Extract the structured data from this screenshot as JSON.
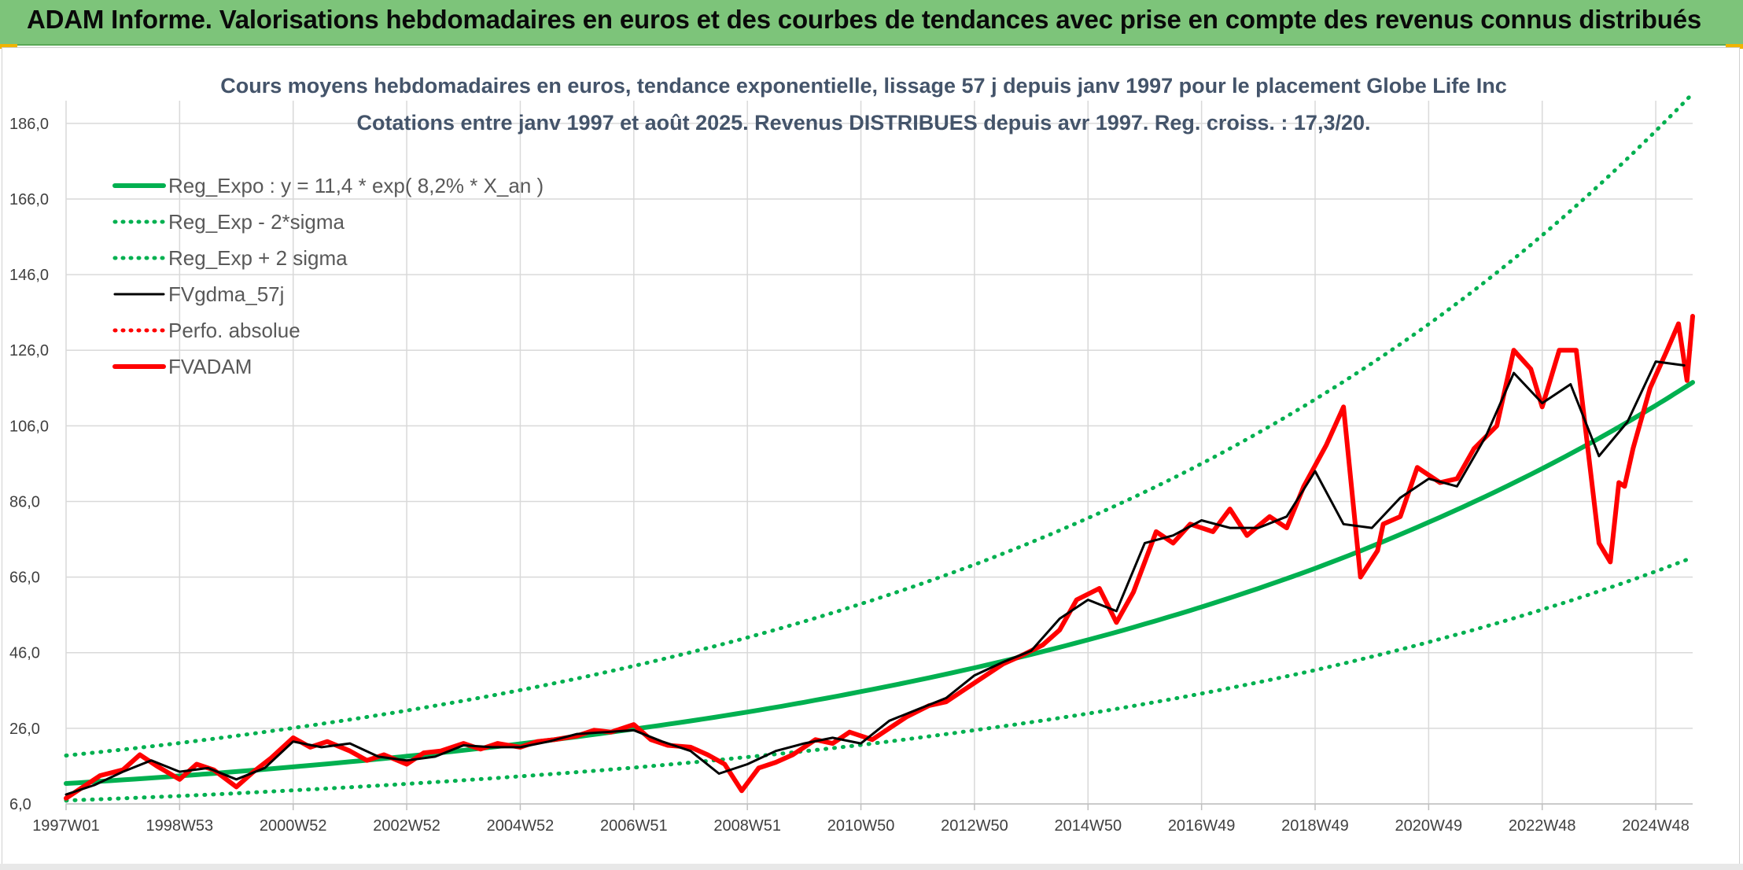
{
  "header": {
    "title": "ADAM Informe. Valorisations hebdomadaires en euros et des courbes de tendances avec prise en compte des revenus connus distribués"
  },
  "colors": {
    "header_bg": "#7dc47a",
    "reg_expo": "#00b050",
    "fvgdma": "#000000",
    "fvadam": "#ff0000",
    "perfo": "#ff0000",
    "grid": "#d9d9d9",
    "title_text": "#44546a"
  },
  "chart_data": {
    "type": "line",
    "title": "Cours moyens hebdomadaires en euros, tendance exponentielle, lissage 57 j depuis janv 1997 pour le placement Globe Life Inc",
    "subtitle": "Cotations entre janv 1997 et août 2025. Revenus DISTRIBUES depuis avr 1997. Reg. croiss. : 17,3/20.",
    "xlabel": "",
    "ylabel": "",
    "ylim": [
      6,
      192
    ],
    "xlim": [
      1997.0,
      2025.65
    ],
    "grid": true,
    "legend_position": "top-left",
    "y_ticks": [
      "6,0",
      "26,0",
      "46,0",
      "66,0",
      "86,0",
      "106,0",
      "126,0",
      "146,0",
      "166,0",
      "186,0"
    ],
    "x_ticks": [
      {
        "label": "1997W01",
        "x": 1997.0
      },
      {
        "label": "1998W53",
        "x": 1999.0
      },
      {
        "label": "2000W52",
        "x": 2001.0
      },
      {
        "label": "2002W52",
        "x": 2003.0
      },
      {
        "label": "2004W52",
        "x": 2005.0
      },
      {
        "label": "2006W51",
        "x": 2007.0
      },
      {
        "label": "2008W51",
        "x": 2009.0
      },
      {
        "label": "2010W50",
        "x": 2011.0
      },
      {
        "label": "2012W50",
        "x": 2013.0
      },
      {
        "label": "2014W50",
        "x": 2015.0
      },
      {
        "label": "2016W49",
        "x": 2017.0
      },
      {
        "label": "2018W49",
        "x": 2019.0
      },
      {
        "label": "2020W49",
        "x": 2021.0
      },
      {
        "label": "2022W48",
        "x": 2023.0
      },
      {
        "label": "2024W48",
        "x": 2025.0
      }
    ],
    "series": [
      {
        "name": "Reg_Expo : y = 11,4 * exp( 8,2% *  X_an )",
        "style": "solid-thick",
        "color": "#00b050",
        "x": [
          1997,
          1999,
          2001,
          2003,
          2005,
          2007,
          2009,
          2011,
          2013,
          2015,
          2017,
          2019,
          2021,
          2023,
          2025,
          2025.65
        ],
        "y": [
          11.4,
          13.4,
          15.8,
          18.6,
          21.9,
          25.8,
          30.3,
          35.7,
          42.0,
          49.4,
          58.1,
          68.3,
          80.5,
          94.7,
          111.4,
          117.5
        ]
      },
      {
        "name": "Reg_Exp - 2*sigma",
        "style": "dotted",
        "color": "#00b050",
        "x": [
          1997,
          1999,
          2001,
          2003,
          2005,
          2007,
          2009,
          2011,
          2013,
          2015,
          2017,
          2019,
          2021,
          2023,
          2025,
          2025.65
        ],
        "y": [
          6.9,
          8.1,
          9.6,
          11.3,
          13.3,
          15.6,
          18.4,
          21.6,
          25.5,
          29.9,
          35.2,
          41.4,
          48.8,
          57.4,
          67.5,
          71.2
        ]
      },
      {
        "name": "Reg_Exp + 2 sigma",
        "style": "dotted",
        "color": "#00b050",
        "x": [
          1997,
          1999,
          2001,
          2003,
          2005,
          2007,
          2009,
          2011,
          2013,
          2015,
          2017,
          2019,
          2021,
          2023,
          2025,
          2025.65
        ],
        "y": [
          18.8,
          22.1,
          26.1,
          30.7,
          36.1,
          42.5,
          50.0,
          58.9,
          69.3,
          81.6,
          96.0,
          113.0,
          132.9,
          156.4,
          184.0,
          193.9
        ]
      },
      {
        "name": "FVgdma_57j",
        "style": "solid",
        "color": "#000000",
        "x": [
          1997.0,
          1997.5,
          1998.0,
          1998.5,
          1999.0,
          1999.5,
          2000.0,
          2000.5,
          2001.0,
          2001.5,
          2002.0,
          2002.5,
          2003.0,
          2003.5,
          2004.0,
          2004.5,
          2005.0,
          2005.5,
          2006.0,
          2006.5,
          2007.0,
          2007.5,
          2008.0,
          2008.5,
          2009.0,
          2009.5,
          2010.0,
          2010.5,
          2011.0,
          2011.5,
          2012.0,
          2012.5,
          2013.0,
          2013.5,
          2014.0,
          2014.5,
          2015.0,
          2015.5,
          2016.0,
          2016.5,
          2017.0,
          2017.5,
          2018.0,
          2018.5,
          2019.0,
          2019.5,
          2020.0,
          2020.5,
          2021.0,
          2021.5,
          2022.0,
          2022.5,
          2023.0,
          2023.5,
          2024.0,
          2024.5,
          2025.0,
          2025.5
        ],
        "y": [
          8.5,
          11.0,
          14.5,
          17.5,
          14.5,
          15.5,
          12.5,
          15.5,
          22.5,
          21.0,
          22.0,
          18.5,
          17.5,
          18.5,
          21.5,
          21.0,
          21.0,
          22.5,
          24.5,
          25.0,
          25.5,
          22.5,
          20.0,
          14.0,
          16.5,
          20.0,
          22.0,
          23.5,
          22.0,
          28.0,
          31.0,
          34.0,
          40.0,
          43.5,
          46.5,
          55.0,
          60.0,
          57.0,
          75.0,
          77.0,
          81.0,
          79.0,
          79.0,
          82.0,
          94.0,
          80.0,
          79.0,
          87.0,
          92.0,
          90.0,
          103.0,
          120.0,
          112.0,
          117.0,
          98.0,
          107.0,
          123.0,
          122.0
        ]
      },
      {
        "name": "Perfo. absolue",
        "style": "dotted",
        "color": "#ff0000",
        "x": [],
        "y": []
      },
      {
        "name": "FVADAM",
        "style": "solid-thick",
        "color": "#ff0000",
        "x": [
          1997.0,
          1997.3,
          1997.6,
          1998.0,
          1998.3,
          1998.6,
          1999.0,
          1999.3,
          1999.6,
          2000.0,
          2000.3,
          2000.6,
          2001.0,
          2001.3,
          2001.6,
          2002.0,
          2002.3,
          2002.6,
          2003.0,
          2003.3,
          2003.6,
          2004.0,
          2004.3,
          2004.6,
          2005.0,
          2005.3,
          2005.6,
          2006.0,
          2006.3,
          2006.6,
          2007.0,
          2007.3,
          2007.6,
          2008.0,
          2008.3,
          2008.6,
          2008.9,
          2009.2,
          2009.5,
          2009.8,
          2010.2,
          2010.5,
          2010.8,
          2011.2,
          2011.5,
          2011.8,
          2012.2,
          2012.5,
          2012.8,
          2013.2,
          2013.5,
          2013.8,
          2014.2,
          2014.5,
          2014.8,
          2015.2,
          2015.5,
          2015.8,
          2016.2,
          2016.5,
          2016.8,
          2017.2,
          2017.5,
          2017.8,
          2018.2,
          2018.5,
          2018.8,
          2019.2,
          2019.5,
          2019.8,
          2020.1,
          2020.2,
          2020.5,
          2020.8,
          2021.2,
          2021.5,
          2021.8,
          2022.2,
          2022.5,
          2022.8,
          2023.0,
          2023.3,
          2023.6,
          2024.0,
          2024.2,
          2024.35,
          2024.45,
          2024.6,
          2024.9,
          2025.2,
          2025.4,
          2025.55,
          2025.65
        ],
        "y": [
          7.5,
          10.5,
          13.5,
          15.0,
          19.0,
          16.0,
          12.5,
          16.5,
          15.0,
          10.5,
          14.5,
          18.0,
          23.5,
          21.0,
          22.5,
          20.0,
          17.5,
          19.0,
          16.5,
          19.5,
          20.0,
          22.0,
          20.5,
          22.0,
          21.0,
          22.5,
          23.0,
          24.0,
          25.5,
          25.0,
          27.0,
          23.0,
          21.5,
          21.0,
          19.0,
          16.5,
          9.5,
          15.5,
          17.0,
          19.0,
          23.0,
          22.0,
          25.0,
          23.0,
          26.0,
          29.0,
          32.0,
          33.0,
          36.0,
          40.0,
          43.0,
          45.0,
          48.0,
          52.0,
          60.0,
          63.0,
          54.0,
          62.0,
          78.0,
          75.0,
          80.0,
          78.0,
          84.0,
          77.0,
          82.0,
          79.0,
          90.0,
          101.0,
          111.0,
          66.0,
          73.0,
          80.0,
          82.0,
          95.0,
          91.0,
          92.0,
          100.0,
          106.0,
          126.0,
          121.0,
          111.0,
          126.0,
          126.0,
          75.0,
          70.0,
          91.0,
          90.0,
          100.0,
          116.0,
          126.0,
          133.0,
          118.0,
          135.0
        ]
      }
    ]
  }
}
